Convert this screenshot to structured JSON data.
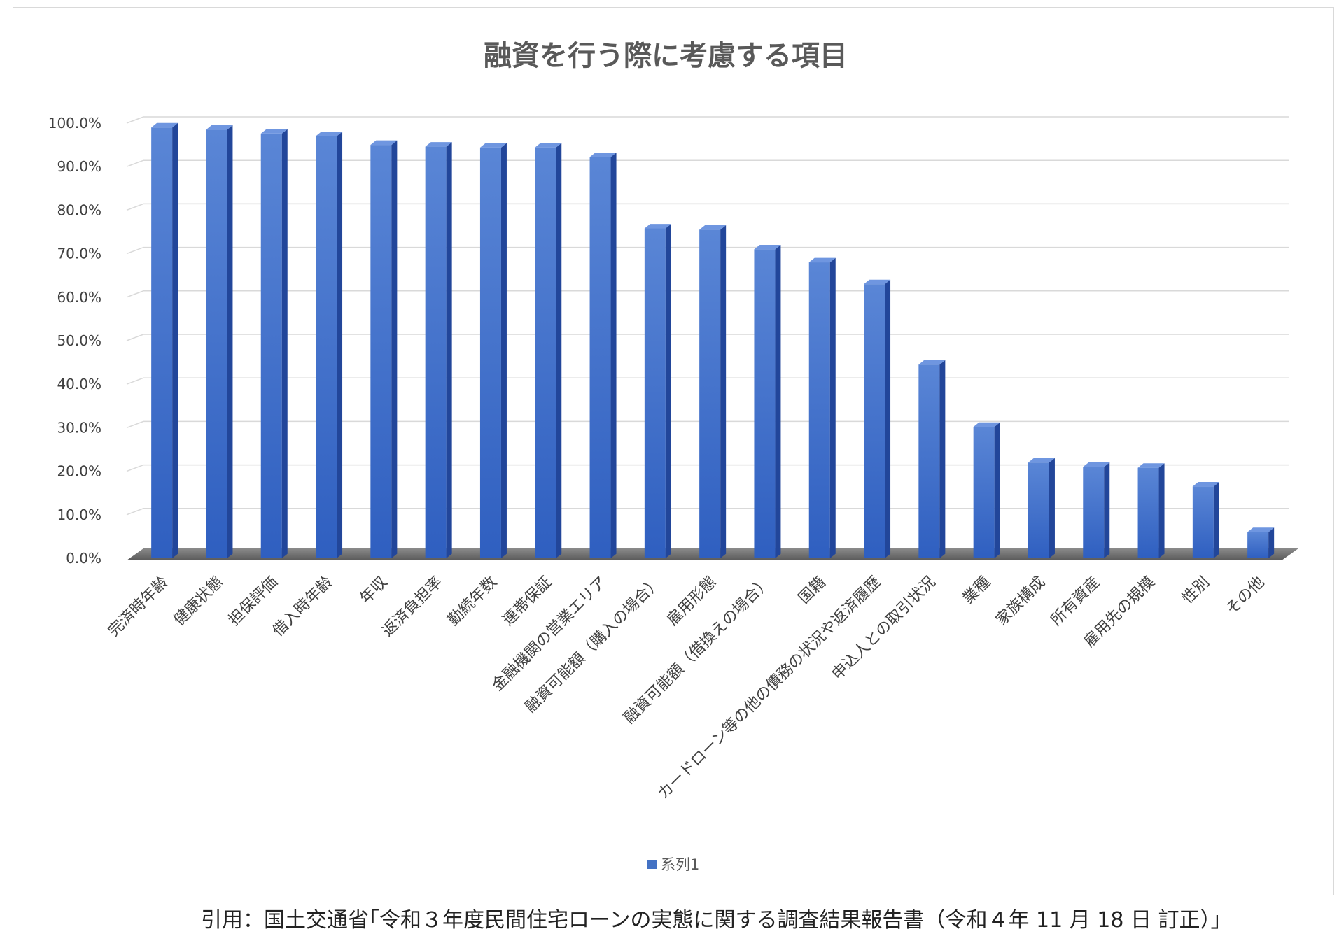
{
  "chart_data": {
    "type": "bar",
    "title": "融資を行う際に考慮する項目",
    "categories": [
      "完済時年齢",
      "健康状態",
      "担保評価",
      "借入時年齢",
      "年収",
      "返済負担率",
      "勤続年数",
      "連帯保証",
      "金融機関の営業エリア",
      "融資可能額（購入の場合）",
      "雇用形態",
      "融資可能額（借換えの場合）",
      "国籍",
      "カードローン等の他の債務の状況や返済履歴",
      "申込人との取引状況",
      "業種",
      "家族構成",
      "所有資産",
      "雇用先の規模",
      "性別",
      "その他"
    ],
    "series": [
      {
        "name": "系列1",
        "values": [
          99.0,
          98.5,
          97.6,
          97.0,
          95.0,
          94.6,
          94.4,
          94.4,
          92.2,
          75.8,
          75.5,
          71.0,
          68.0,
          63.0,
          44.5,
          30.2,
          22.0,
          21.0,
          20.8,
          16.5,
          6.0
        ]
      }
    ],
    "y_ticks": [
      "0.0%",
      "10.0%",
      "20.0%",
      "30.0%",
      "40.0%",
      "50.0%",
      "60.0%",
      "70.0%",
      "80.0%",
      "90.0%",
      "100.0%"
    ],
    "ylim": [
      0,
      100
    ],
    "grid": true,
    "legend_position": "bottom",
    "bar_color": "#4472c4"
  },
  "citation": "引用：国土交通省｢令和３年度民間住宅ローンの実態に関する調査結果報告書（令和４年 11 月 18 日 訂正）」"
}
